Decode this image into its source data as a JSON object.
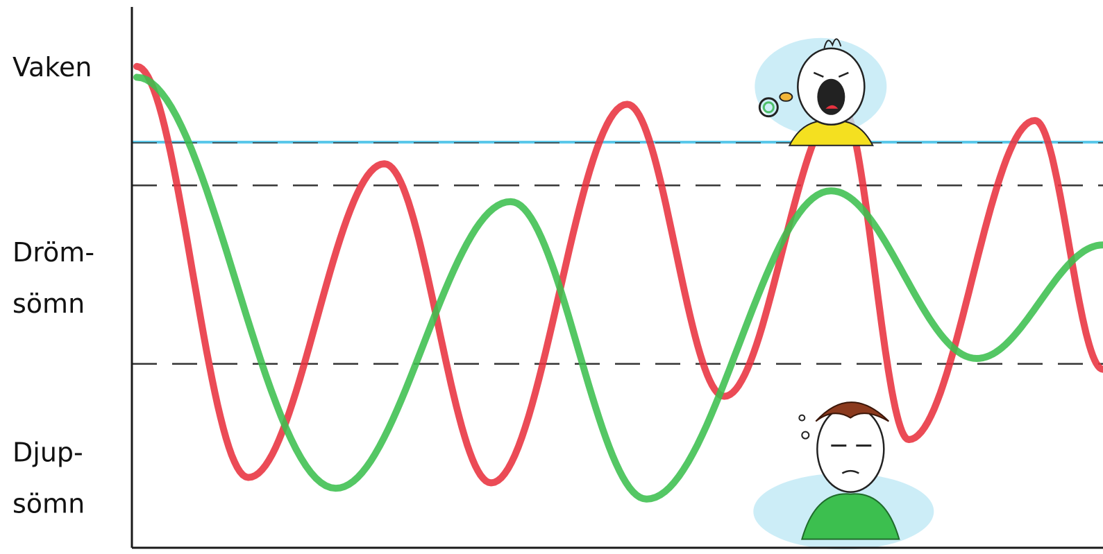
{
  "chart_data": {
    "type": "line",
    "title": "",
    "xlabel": "",
    "ylabel": "",
    "y_scale_labels": [
      {
        "lines": [
          "Vaken"
        ],
        "level": 8.9
      },
      {
        "lines": [
          "Dröm-",
          "sömn"
        ],
        "level": 5.0
      },
      {
        "lines": [
          "Djup-",
          "sömn"
        ],
        "level": 1.3
      }
    ],
    "ylim": [
      0,
      10
    ],
    "xlim": [
      0,
      10
    ],
    "grid": false,
    "legend": "none",
    "reference_lines": [
      {
        "y": 7.5,
        "style": "solid",
        "color": "#5bc8ea"
      },
      {
        "y": 6.7,
        "style": "dashed",
        "color": "#333333"
      },
      {
        "y": 3.4,
        "style": "dashed",
        "color": "#333333"
      }
    ],
    "series": [
      {
        "color": "#e8323f",
        "points": [
          [
            0.05,
            8.9
          ],
          [
            1.2,
            1.3
          ],
          [
            2.6,
            7.1
          ],
          [
            3.7,
            1.2
          ],
          [
            5.1,
            8.2
          ],
          [
            6.1,
            2.8
          ],
          [
            7.3,
            8.2
          ],
          [
            8.0,
            2.0
          ],
          [
            9.3,
            7.9
          ],
          [
            10.0,
            3.3
          ]
        ]
      },
      {
        "color": "#3cbf4f",
        "points": [
          [
            0.05,
            8.7
          ],
          [
            2.1,
            1.1
          ],
          [
            3.9,
            6.4
          ],
          [
            5.3,
            0.9
          ],
          [
            7.2,
            6.6
          ],
          [
            8.7,
            3.5
          ],
          [
            10.0,
            5.6
          ]
        ]
      }
    ]
  },
  "illustrations": [
    {
      "name": "crying-baby-icon",
      "x": 6.7,
      "y": 8.4
    },
    {
      "name": "tired-parent-icon",
      "x": 6.9,
      "y": 0.8
    }
  ]
}
